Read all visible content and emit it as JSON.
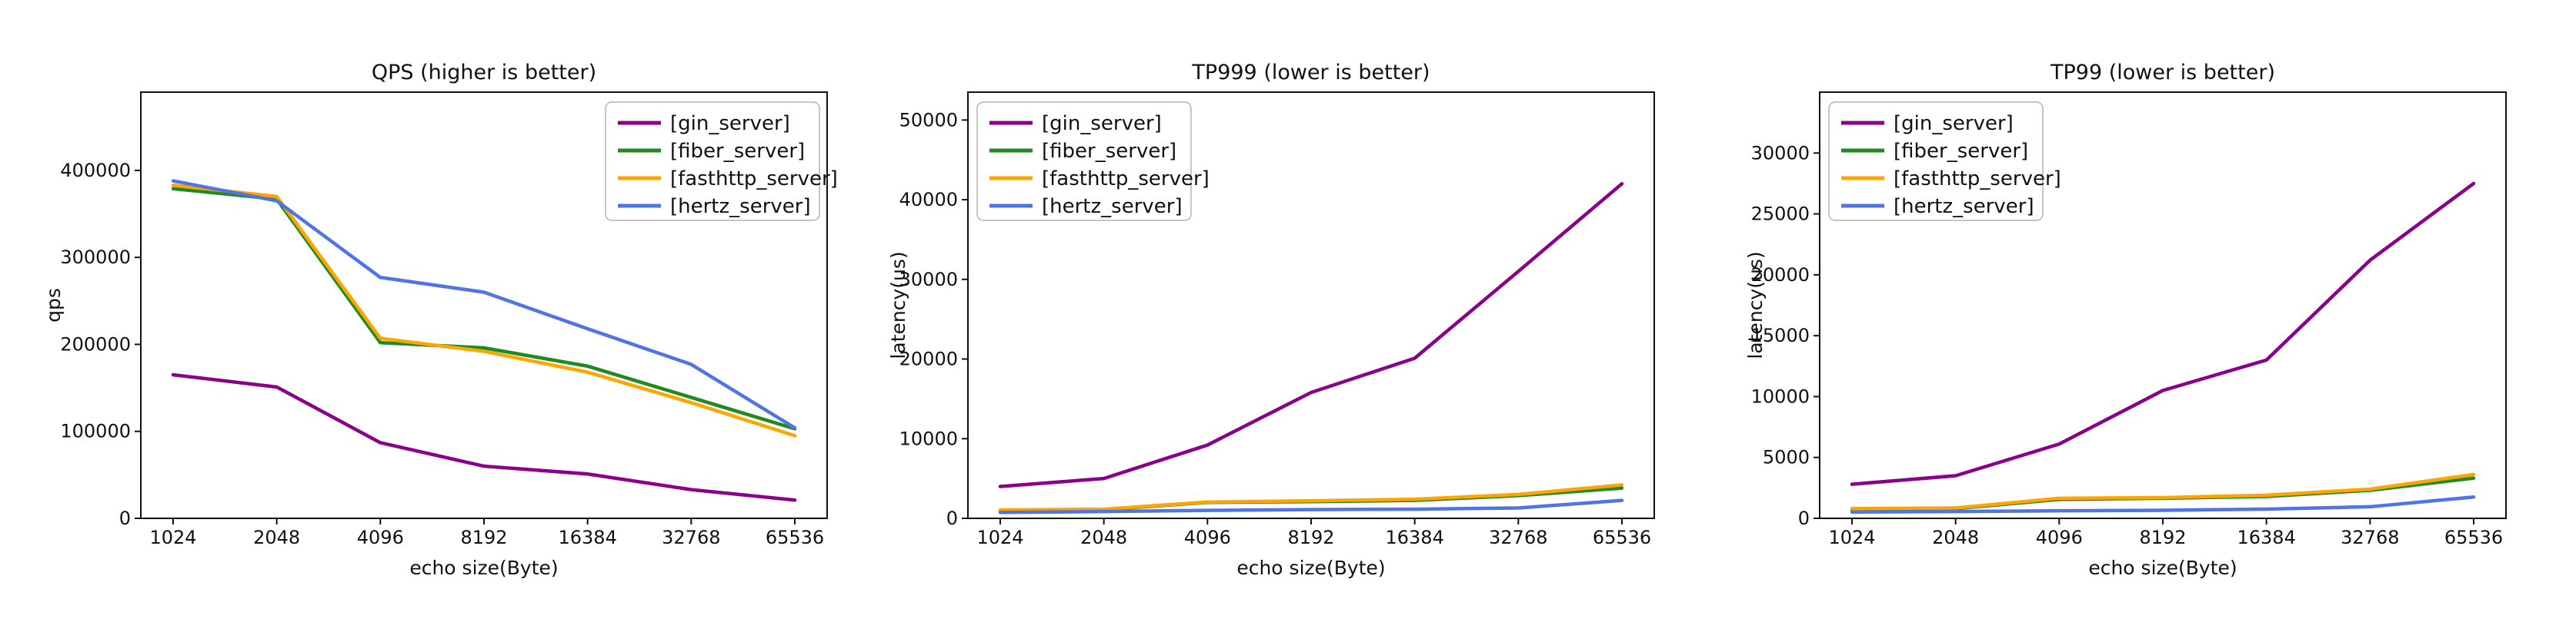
{
  "figure": {
    "background": "#ffffff",
    "x_axis_label": "echo size(Byte)",
    "categories": [
      "1024",
      "2048",
      "4096",
      "8192",
      "16384",
      "32768",
      "65536"
    ]
  },
  "chart_data": [
    {
      "type": "line",
      "title": "QPS (higher is better)",
      "xlabel": "echo size(Byte)",
      "ylabel": "qps",
      "categories": [
        "1024",
        "2048",
        "4096",
        "8192",
        "16384",
        "32768",
        "65536"
      ],
      "ylim": [
        0,
        490000
      ],
      "yticks": [
        0,
        100000,
        200000,
        300000,
        400000
      ],
      "grid": false,
      "legend_position": "top-right",
      "series": [
        {
          "name": "[gin_server]",
          "color": "#8B008B",
          "values": [
            165000,
            151000,
            87000,
            60000,
            51000,
            33000,
            21000
          ]
        },
        {
          "name": "[fiber_server]",
          "color": "#1E8B1E",
          "values": [
            379000,
            367000,
            202000,
            196000,
            175000,
            139000,
            103000
          ]
        },
        {
          "name": "[fasthttp_server]",
          "color": "#FFA500",
          "values": [
            383000,
            370000,
            207000,
            192000,
            168000,
            133000,
            95000
          ]
        },
        {
          "name": "[hertz_server]",
          "color": "#4E74E6",
          "values": [
            388000,
            365000,
            277000,
            260000,
            218000,
            177000,
            104000
          ]
        }
      ]
    },
    {
      "type": "line",
      "title": "TP999 (lower is better)",
      "xlabel": "echo size(Byte)",
      "ylabel": "latency(us)",
      "categories": [
        "1024",
        "2048",
        "4096",
        "8192",
        "16384",
        "32768",
        "65536"
      ],
      "ylim": [
        0,
        53500
      ],
      "yticks": [
        0,
        10000,
        20000,
        30000,
        40000,
        50000
      ],
      "grid": false,
      "legend_position": "top-left",
      "series": [
        {
          "name": "[gin_server]",
          "color": "#8B008B",
          "values": [
            4000,
            5000,
            9200,
            15800,
            20100,
            31000,
            42000
          ]
        },
        {
          "name": "[fiber_server]",
          "color": "#1E8B1E",
          "values": [
            950,
            1100,
            2000,
            2100,
            2250,
            2850,
            3800
          ]
        },
        {
          "name": "[fasthttp_server]",
          "color": "#FFA500",
          "values": [
            1050,
            1150,
            2050,
            2200,
            2400,
            3000,
            4200
          ]
        },
        {
          "name": "[hertz_server]",
          "color": "#4E74E6",
          "values": [
            750,
            850,
            1000,
            1100,
            1150,
            1300,
            2250
          ]
        }
      ]
    },
    {
      "type": "line",
      "title": "TP99 (lower is better)",
      "xlabel": "echo size(Byte)",
      "ylabel": "latency(us)",
      "categories": [
        "1024",
        "2048",
        "4096",
        "8192",
        "16384",
        "32768",
        "65536"
      ],
      "ylim": [
        0,
        35000
      ],
      "yticks": [
        0,
        5000,
        10000,
        15000,
        20000,
        25000,
        30000
      ],
      "grid": false,
      "legend_position": "top-left",
      "series": [
        {
          "name": "[gin_server]",
          "color": "#8B008B",
          "values": [
            2800,
            3500,
            6100,
            10500,
            13000,
            21200,
            27500
          ]
        },
        {
          "name": "[fiber_server]",
          "color": "#1E8B1E",
          "values": [
            700,
            800,
            1550,
            1650,
            1800,
            2300,
            3300
          ]
        },
        {
          "name": "[fasthttp_server]",
          "color": "#FFA500",
          "values": [
            800,
            850,
            1650,
            1700,
            1900,
            2400,
            3600
          ]
        },
        {
          "name": "[hertz_server]",
          "color": "#4E74E6",
          "values": [
            520,
            560,
            620,
            660,
            760,
            950,
            1750
          ]
        }
      ]
    }
  ]
}
